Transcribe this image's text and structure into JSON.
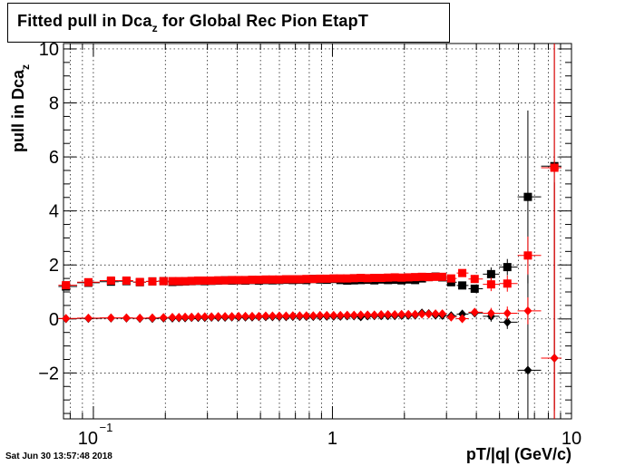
{
  "title": {
    "main": "Fitted pull in Dca",
    "sub": "z",
    "rest": " for Global Rec Pion EtapT"
  },
  "ylabel": {
    "main": "pull in Dca",
    "sub": "z"
  },
  "xlabel": "pT/|q| (GeV/c)",
  "timestamp": "Sat Jun 30 13:57:48 2018",
  "chart_data": {
    "type": "scatter",
    "xscale": "log",
    "xlim": [
      0.075,
      10
    ],
    "ylim": [
      -3.7,
      10.2
    ],
    "xticklabels": [
      {
        "value": 0.1,
        "label": "10",
        "sup": "−1"
      },
      {
        "value": 1,
        "label": "1"
      },
      {
        "value": 10,
        "label": "10"
      }
    ],
    "yticks": [
      -2,
      0,
      2,
      4,
      6,
      8,
      10
    ],
    "yticklabels": [
      "−2",
      "0",
      "2",
      "4",
      "6",
      "8",
      "10"
    ],
    "grid": true,
    "colors": {
      "black": "#000000",
      "red": "#ff0000"
    },
    "x": [
      0.0768,
      0.0953,
      0.1185,
      0.1375,
      0.1565,
      0.1765,
      0.1965,
      0.214,
      0.228,
      0.242,
      0.2575,
      0.2745,
      0.2925,
      0.312,
      0.333,
      0.3555,
      0.3795,
      0.405,
      0.4325,
      0.4615,
      0.4925,
      0.526,
      0.5615,
      0.5995,
      0.64,
      0.683,
      0.7295,
      0.7785,
      0.8315,
      0.8875,
      0.9475,
      1.0115,
      1.08,
      1.153,
      1.231,
      1.314,
      1.403,
      1.498,
      1.599,
      1.707,
      1.823,
      1.946,
      2.078,
      2.218,
      2.368,
      2.5285,
      2.6995,
      2.882,
      3.138,
      3.492,
      3.935,
      4.61,
      5.39,
      6.57,
      8.48
    ],
    "series": [
      {
        "marker": "square",
        "color": "black",
        "y": [
          1.2,
          1.34,
          1.38,
          1.4,
          1.36,
          1.39,
          1.4,
          1.37,
          1.38,
          1.39,
          1.4,
          1.41,
          1.4,
          1.41,
          1.42,
          1.43,
          1.42,
          1.43,
          1.42,
          1.44,
          1.42,
          1.44,
          1.43,
          1.44,
          1.45,
          1.44,
          1.45,
          1.44,
          1.48,
          1.46,
          1.45,
          1.48,
          1.44,
          1.42,
          1.43,
          1.44,
          1.45,
          1.43,
          1.46,
          1.44,
          1.45,
          1.43,
          1.46,
          1.44,
          1.5,
          1.55,
          1.57,
          1.54,
          1.36,
          1.24,
          1.12,
          1.66,
          1.92,
          4.52,
          5.66
        ],
        "yerr": [
          0.08,
          0.05,
          0.05,
          0.05,
          0.04,
          0.04,
          0.04,
          0.04,
          0.04,
          0.04,
          0.04,
          0.04,
          0.04,
          0.04,
          0.04,
          0.04,
          0.04,
          0.04,
          0.04,
          0.04,
          0.04,
          0.04,
          0.04,
          0.04,
          0.04,
          0.04,
          0.04,
          0.04,
          0.04,
          0.04,
          0.05,
          0.05,
          0.05,
          0.05,
          0.05,
          0.05,
          0.05,
          0.05,
          0.05,
          0.06,
          0.06,
          0.06,
          0.06,
          0.07,
          0.07,
          0.08,
          0.08,
          0.09,
          0.1,
          0.12,
          0.15,
          0.25,
          0.3,
          3.2,
          9.0
        ]
      },
      {
        "marker": "square",
        "color": "red",
        "y": [
          1.25,
          1.36,
          1.42,
          1.42,
          1.37,
          1.39,
          1.4,
          1.4,
          1.4,
          1.4,
          1.41,
          1.42,
          1.42,
          1.42,
          1.43,
          1.43,
          1.44,
          1.44,
          1.44,
          1.45,
          1.45,
          1.46,
          1.46,
          1.46,
          1.47,
          1.47,
          1.47,
          1.48,
          1.48,
          1.49,
          1.49,
          1.5,
          1.5,
          1.5,
          1.51,
          1.52,
          1.51,
          1.52,
          1.52,
          1.53,
          1.54,
          1.53,
          1.54,
          1.55,
          1.56,
          1.55,
          1.56,
          1.56,
          1.5,
          1.7,
          1.48,
          1.28,
          1.31,
          2.35,
          5.6
        ],
        "yerr": [
          0.08,
          0.05,
          0.05,
          0.05,
          0.04,
          0.04,
          0.04,
          0.04,
          0.04,
          0.04,
          0.04,
          0.04,
          0.04,
          0.04,
          0.04,
          0.04,
          0.04,
          0.04,
          0.04,
          0.04,
          0.04,
          0.04,
          0.04,
          0.04,
          0.04,
          0.04,
          0.04,
          0.04,
          0.04,
          0.04,
          0.05,
          0.05,
          0.05,
          0.05,
          0.05,
          0.05,
          0.05,
          0.05,
          0.05,
          0.06,
          0.06,
          0.06,
          0.06,
          0.07,
          0.07,
          0.08,
          0.08,
          0.09,
          0.1,
          0.12,
          0.15,
          0.25,
          0.3,
          0.7,
          9.0
        ]
      },
      {
        "marker": "diamond",
        "color": "black",
        "y": [
          0.01,
          0.02,
          0.03,
          0.03,
          0.02,
          0.02,
          0.03,
          0.03,
          0.04,
          0.04,
          0.05,
          0.05,
          0.05,
          0.06,
          0.06,
          0.06,
          0.07,
          0.07,
          0.07,
          0.07,
          0.08,
          0.08,
          0.08,
          0.08,
          0.08,
          0.09,
          0.09,
          0.09,
          0.09,
          0.1,
          0.1,
          0.1,
          0.1,
          0.11,
          0.11,
          0.08,
          0.11,
          0.12,
          0.12,
          0.12,
          0.12,
          0.13,
          0.13,
          0.14,
          0.22,
          0.2,
          0.14,
          0.13,
          0.12,
          0.18,
          0.22,
          0.1,
          -0.12,
          -1.9,
          -1.45
        ],
        "yerr": [
          0.06,
          0.04,
          0.04,
          0.04,
          0.03,
          0.03,
          0.03,
          0.03,
          0.03,
          0.03,
          0.03,
          0.03,
          0.03,
          0.03,
          0.03,
          0.03,
          0.03,
          0.03,
          0.03,
          0.03,
          0.03,
          0.03,
          0.03,
          0.03,
          0.03,
          0.03,
          0.03,
          0.03,
          0.03,
          0.03,
          0.04,
          0.04,
          0.04,
          0.04,
          0.04,
          0.04,
          0.04,
          0.04,
          0.04,
          0.05,
          0.05,
          0.05,
          0.05,
          0.06,
          0.06,
          0.06,
          0.07,
          0.07,
          0.08,
          0.1,
          0.12,
          0.2,
          0.25,
          3.5,
          6.5
        ]
      },
      {
        "marker": "diamond",
        "color": "red",
        "y": [
          0.02,
          0.03,
          0.04,
          0.04,
          0.03,
          0.04,
          0.05,
          0.06,
          0.06,
          0.07,
          0.07,
          0.08,
          0.08,
          0.08,
          0.09,
          0.09,
          0.09,
          0.1,
          0.1,
          0.1,
          0.1,
          0.11,
          0.11,
          0.11,
          0.11,
          0.12,
          0.12,
          0.12,
          0.12,
          0.13,
          0.13,
          0.13,
          0.13,
          0.14,
          0.14,
          0.15,
          0.15,
          0.15,
          0.16,
          0.16,
          0.16,
          0.17,
          0.17,
          0.17,
          0.18,
          0.18,
          0.19,
          0.19,
          0.07,
          0.01,
          0.25,
          0.21,
          0.21,
          0.3,
          -1.45
        ],
        "yerr": [
          0.06,
          0.04,
          0.04,
          0.04,
          0.03,
          0.03,
          0.03,
          0.03,
          0.03,
          0.03,
          0.03,
          0.03,
          0.03,
          0.03,
          0.03,
          0.03,
          0.03,
          0.03,
          0.03,
          0.03,
          0.03,
          0.03,
          0.03,
          0.03,
          0.03,
          0.03,
          0.03,
          0.03,
          0.03,
          0.03,
          0.04,
          0.04,
          0.04,
          0.04,
          0.04,
          0.04,
          0.04,
          0.04,
          0.04,
          0.05,
          0.05,
          0.05,
          0.05,
          0.06,
          0.06,
          0.06,
          0.07,
          0.07,
          0.08,
          0.1,
          0.12,
          0.2,
          0.25,
          0.5,
          6.5
        ]
      }
    ]
  }
}
